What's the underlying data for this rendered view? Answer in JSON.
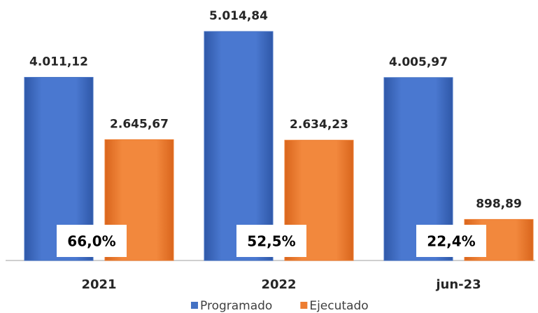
{
  "chart_data": {
    "type": "bar",
    "categories": [
      "2021",
      "2022",
      "jun-23"
    ],
    "series": [
      {
        "name": "Programado",
        "color": "#4472c4",
        "values": [
          4011.12,
          5014.84,
          4005.97
        ],
        "value_labels": [
          "4.011,12",
          "5.014,84",
          "4.005,97"
        ]
      },
      {
        "name": "Ejecutado",
        "color": "#ed7d31",
        "values": [
          2645.67,
          2634.23,
          898.89
        ],
        "value_labels": [
          "2.645,67",
          "2.634,23",
          "898,89"
        ]
      }
    ],
    "annotations": [
      "66,0%",
      "52,5%",
      "22,4%"
    ],
    "legend": "bottom"
  }
}
